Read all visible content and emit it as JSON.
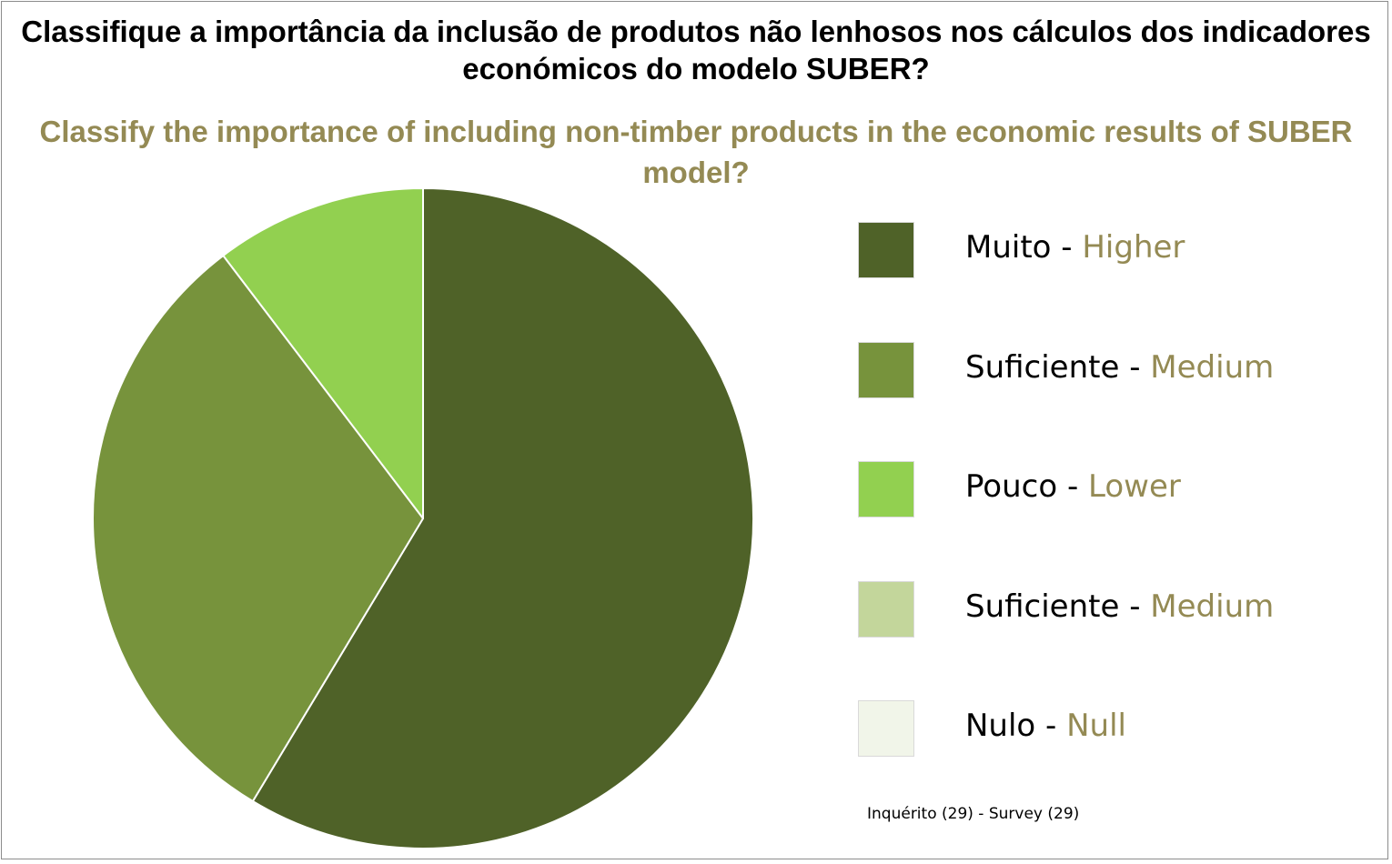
{
  "chart_data": {
    "type": "pie",
    "title": "Classifique a importância da inclusão de produtos não lenhosos nos cálculos dos indicadores económicos do modelo SUBER?",
    "subtitle": "Classify the importance of including non-timber products in the economic results of SUBER model?",
    "slices": [
      {
        "label_pt": "Muito",
        "separator": " - ",
        "label_en": "Higher",
        "value": 17,
        "color": "#4f6228"
      },
      {
        "label_pt": "Suficiente",
        "separator": " - ",
        "label_en": "Medium",
        "value": 9,
        "color": "#77933c"
      },
      {
        "label_pt": "Pouco",
        "separator": " - ",
        "label_en": "Lower",
        "value": 3,
        "color": "#92d050"
      },
      {
        "label_pt": "Suficiente",
        "separator": " - ",
        "label_en": "Medium",
        "value": 0,
        "color": "#c3d69b"
      },
      {
        "label_pt": "Nulo",
        "separator": " - ",
        "label_en": "Null",
        "value": 0,
        "color": "#f1f5e9"
      }
    ],
    "legend_position": "right",
    "footnote": "Inquérito (29) -  Survey (29)"
  }
}
